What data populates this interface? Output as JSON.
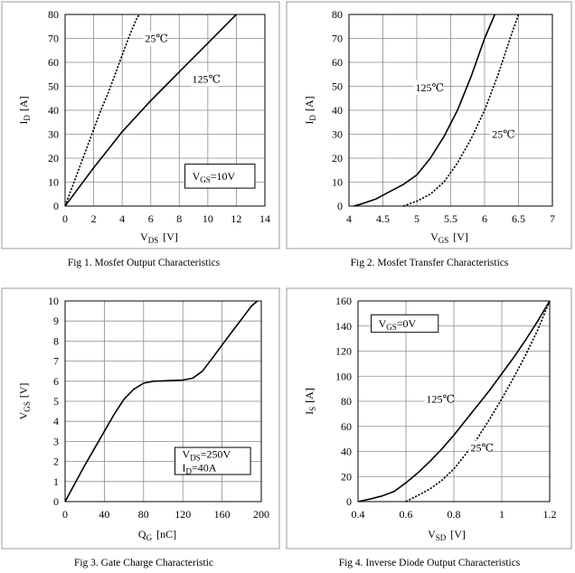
{
  "chart_data": [
    {
      "type": "line",
      "caption": "Fig 1. Mosfet Output Characteristics",
      "xlabel": "V",
      "xlabel_sub": "DS",
      "xlabel_unit": "[V]",
      "ylabel": "I",
      "ylabel_sub": "D",
      "ylabel_unit": "[A]",
      "xlim": [
        0,
        14
      ],
      "ylim": [
        0,
        80
      ],
      "xticks": [
        0,
        2,
        4,
        6,
        8,
        10,
        12,
        14
      ],
      "yticks": [
        0,
        10,
        20,
        30,
        40,
        50,
        60,
        70,
        80
      ],
      "xtick_labels": [
        "0",
        "2",
        "4",
        "6",
        "8",
        "10",
        "12",
        "14"
      ],
      "ytick_labels": [
        "0",
        "10",
        "20",
        "30",
        "40",
        "50",
        "60",
        "70",
        "80"
      ],
      "grid": true,
      "series": [
        {
          "name": "25℃",
          "style": "dotted",
          "x": [
            0,
            0.5,
            1,
            1.5,
            2,
            2.5,
            3,
            3.5,
            4,
            4.5,
            5,
            5.2
          ],
          "y": [
            0,
            8,
            16,
            24,
            32,
            40,
            47,
            55,
            63,
            71,
            78,
            80
          ]
        },
        {
          "name": "125℃",
          "style": "solid",
          "x": [
            0,
            1,
            2,
            3,
            4,
            5,
            6,
            7,
            8,
            9,
            10,
            11,
            12
          ],
          "y": [
            0,
            8,
            16,
            23.5,
            31,
            37.5,
            44,
            50,
            56,
            62,
            68,
            74,
            80
          ]
        }
      ],
      "annotations": [
        {
          "text": "25℃",
          "x": 5.6,
          "y": 68.5,
          "anchor": "start"
        },
        {
          "text": "125℃",
          "x": 8.9,
          "y": 51.5,
          "anchor": "start"
        }
      ],
      "boxes": [
        {
          "lines": [
            {
              "main": "V",
              "sub": "GS",
              "tail": "=10V"
            }
          ],
          "x0": 8.4,
          "y0": 17.5,
          "x1": 13.3,
          "y1": 7.5
        }
      ]
    },
    {
      "type": "line",
      "caption": "Fig 2. Mosfet Transfer Characteristics",
      "xlabel": "V",
      "xlabel_sub": "GS",
      "xlabel_unit": "[V]",
      "ylabel": "I",
      "ylabel_sub": "D",
      "ylabel_unit": "[A]",
      "xlim": [
        4,
        7
      ],
      "ylim": [
        0,
        80
      ],
      "xticks": [
        4,
        4.5,
        5,
        5.5,
        6,
        6.5,
        7
      ],
      "yticks": [
        0,
        10,
        20,
        30,
        40,
        50,
        60,
        70,
        80
      ],
      "xtick_labels": [
        "4",
        "4.5",
        "5",
        "5.5",
        "6",
        "6.5",
        "7"
      ],
      "ytick_labels": [
        "0",
        "10",
        "20",
        "30",
        "40",
        "50",
        "60",
        "70",
        "80"
      ],
      "grid": true,
      "series": [
        {
          "name": "125℃",
          "style": "solid",
          "x": [
            4.07,
            4.2,
            4.4,
            4.6,
            4.8,
            5.0,
            5.2,
            5.4,
            5.6,
            5.8,
            6.0,
            6.15
          ],
          "y": [
            0,
            1,
            3,
            6,
            9,
            13,
            20,
            29,
            40,
            54,
            70,
            80
          ]
        },
        {
          "name": "25℃",
          "style": "dotted",
          "x": [
            4.8,
            4.9,
            5.0,
            5.2,
            5.4,
            5.6,
            5.8,
            6.0,
            6.2,
            6.4,
            6.5
          ],
          "y": [
            0,
            1,
            2,
            5,
            10,
            18,
            28,
            40,
            55,
            72,
            80
          ]
        }
      ],
      "annotations": [
        {
          "text": "125℃",
          "x": 4.98,
          "y": 48,
          "anchor": "start"
        },
        {
          "text": "25℃",
          "x": 6.11,
          "y": 28.5,
          "anchor": "start"
        }
      ],
      "boxes": []
    },
    {
      "type": "line",
      "caption": "Fig 3. Gate Charge Characteristic",
      "xlabel": "Q",
      "xlabel_sub": "G",
      "xlabel_unit": "[nC]",
      "ylabel": "V",
      "ylabel_sub": "GS",
      "ylabel_unit": "[V]",
      "xlim": [
        0,
        200
      ],
      "ylim": [
        0,
        10
      ],
      "xticks": [
        0,
        40,
        80,
        120,
        160,
        200
      ],
      "yticks": [
        0,
        1,
        2,
        3,
        4,
        5,
        6,
        7,
        8,
        9,
        10
      ],
      "xtick_labels": [
        "0",
        "40",
        "80",
        "120",
        "160",
        "200"
      ],
      "ytick_labels": [
        "0",
        "1",
        "2",
        "3",
        "4",
        "5",
        "6",
        "7",
        "8",
        "9",
        "10"
      ],
      "grid": true,
      "series": [
        {
          "name": "VGS",
          "style": "solid",
          "x": [
            0,
            10,
            20,
            30,
            40,
            50,
            60,
            70,
            80,
            90,
            100,
            110,
            120,
            130,
            140,
            150,
            160,
            170,
            180,
            190,
            196
          ],
          "y": [
            0,
            0.9,
            1.8,
            2.65,
            3.5,
            4.35,
            5.1,
            5.6,
            5.9,
            6.0,
            6.02,
            6.04,
            6.06,
            6.15,
            6.5,
            7.15,
            7.8,
            8.45,
            9.1,
            9.75,
            10
          ]
        }
      ],
      "annotations": [],
      "boxes": [
        {
          "lines": [
            {
              "main": "V",
              "sub": "DS",
              "tail": "=250V"
            },
            {
              "main": "I",
              "sub": "D",
              "tail": "=40A"
            }
          ],
          "x0": 112,
          "y0": 2.7,
          "x1": 189,
          "y1": 1.35
        }
      ]
    },
    {
      "type": "line",
      "caption": "Fig 4. Inverse Diode Output Characteristics",
      "xlabel": "V",
      "xlabel_sub": "SD",
      "xlabel_unit": "[V]",
      "ylabel": "I",
      "ylabel_sub": "S",
      "ylabel_unit": "[A]",
      "xlim": [
        0.4,
        1.2
      ],
      "ylim": [
        0,
        160
      ],
      "xticks": [
        0.4,
        0.6,
        0.8,
        1.0,
        1.2
      ],
      "yticks": [
        0,
        20,
        40,
        60,
        80,
        100,
        120,
        140,
        160
      ],
      "xtick_labels": [
        "0.4",
        "0.6",
        "0.8",
        "1",
        "1.2"
      ],
      "ytick_labels": [
        "0",
        "20",
        "40",
        "60",
        "80",
        "100",
        "120",
        "140",
        "160"
      ],
      "grid": true,
      "series": [
        {
          "name": "125℃",
          "style": "solid",
          "x": [
            0.4,
            0.45,
            0.5,
            0.55,
            0.6,
            0.65,
            0.7,
            0.75,
            0.8,
            0.85,
            0.9,
            0.95,
            1.0,
            1.05,
            1.1,
            1.15,
            1.2
          ],
          "y": [
            0,
            2,
            4.5,
            8,
            15,
            23,
            32,
            42,
            53,
            65,
            77,
            89,
            102,
            115,
            129,
            144,
            160
          ]
        },
        {
          "name": "25℃",
          "style": "dotted",
          "x": [
            0.6,
            0.65,
            0.7,
            0.75,
            0.8,
            0.85,
            0.9,
            0.95,
            1.0,
            1.05,
            1.1,
            1.15,
            1.2
          ],
          "y": [
            0,
            5,
            10,
            17,
            26,
            38,
            51,
            66,
            82,
            99,
            117,
            137,
            160
          ]
        }
      ],
      "annotations": [
        {
          "text": "125℃",
          "x": 0.685,
          "y": 79,
          "anchor": "start"
        },
        {
          "text": "25℃",
          "x": 0.87,
          "y": 40,
          "anchor": "start"
        }
      ],
      "boxes": [
        {
          "lines": [
            {
              "main": "V",
              "sub": "GS",
              "tail": "=0V"
            }
          ],
          "x0": 0.455,
          "y0": 149,
          "x1": 0.735,
          "y1": 135
        }
      ]
    }
  ]
}
